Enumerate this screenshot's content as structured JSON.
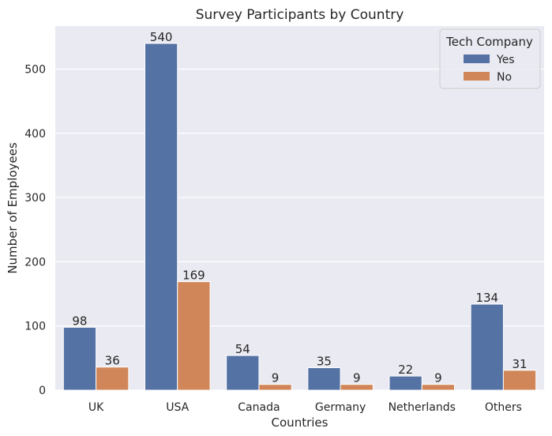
{
  "chart_data": {
    "type": "bar",
    "title": "Survey Participants by Country",
    "xlabel": "Countries",
    "ylabel": "Number of Employees",
    "categories": [
      "UK",
      "USA",
      "Canada",
      "Germany",
      "Netherlands",
      "Others"
    ],
    "series": [
      {
        "name": "Yes",
        "values": [
          98,
          540,
          54,
          35,
          22,
          134
        ],
        "color": "#5572a5"
      },
      {
        "name": "No",
        "values": [
          36,
          169,
          9,
          9,
          9,
          31
        ],
        "color": "#d08658"
      }
    ],
    "ylim": [
      0,
      567
    ],
    "yticks": [
      0,
      100,
      200,
      300,
      400,
      500
    ],
    "legend": {
      "title": "Tech Company",
      "placement": "top-right"
    },
    "grid": true,
    "background_color": "#eaeaf2",
    "grid_color": "#ffffff"
  }
}
